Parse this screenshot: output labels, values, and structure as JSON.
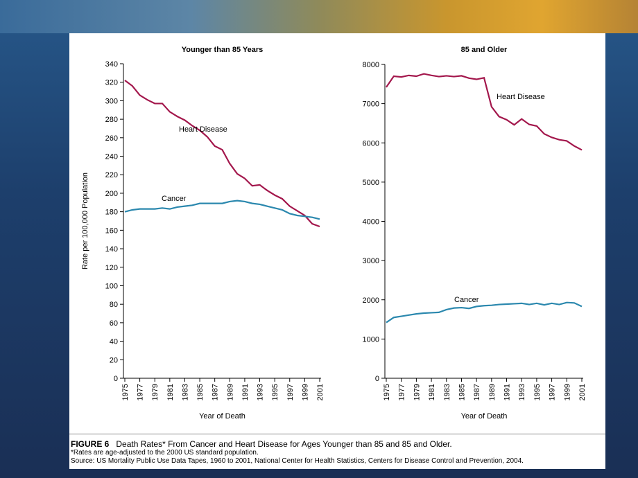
{
  "chart_data": [
    {
      "type": "line",
      "title": "Younger than 85 Years",
      "y_label": "Rate per 100,000 Population",
      "x_label": "Year of Death",
      "x": [
        1975,
        1976,
        1977,
        1978,
        1979,
        1980,
        1981,
        1982,
        1983,
        1984,
        1985,
        1986,
        1987,
        1988,
        1989,
        1990,
        1991,
        1992,
        1993,
        1994,
        1995,
        1996,
        1997,
        1998,
        1999,
        2000,
        2001
      ],
      "series": [
        {
          "name": "Heart Disease",
          "color": "#a3174c",
          "values": [
            322,
            316,
            306,
            301,
            297,
            297,
            288,
            283,
            279,
            273,
            268,
            261,
            251,
            247,
            232,
            221,
            216,
            208,
            209,
            203,
            198,
            194,
            186,
            181,
            176,
            167,
            164
          ]
        },
        {
          "name": "Cancer",
          "color": "#2b88ae",
          "values": [
            180,
            182,
            183,
            183,
            183,
            184,
            183,
            185,
            186,
            187,
            189,
            189,
            189,
            189,
            191,
            192,
            191,
            189,
            188,
            186,
            184,
            182,
            178,
            176,
            175,
            174,
            172
          ]
        }
      ],
      "xlim": [
        1975,
        2001
      ],
      "xticks": [
        1975,
        1977,
        1979,
        1981,
        1983,
        1985,
        1987,
        1989,
        1991,
        1993,
        1995,
        1997,
        1999,
        2001
      ],
      "ylim": [
        0,
        340
      ],
      "yticks": [
        0,
        20,
        40,
        60,
        80,
        100,
        120,
        140,
        160,
        180,
        200,
        220,
        240,
        260,
        280,
        300,
        320,
        340
      ]
    },
    {
      "type": "line",
      "title": "85 and Older",
      "x_label": "Year of Death",
      "x": [
        1975,
        1976,
        1977,
        1978,
        1979,
        1980,
        1981,
        1982,
        1983,
        1984,
        1985,
        1986,
        1987,
        1988,
        1989,
        1990,
        1991,
        1992,
        1993,
        1994,
        1995,
        1996,
        1997,
        1998,
        1999,
        2000,
        2001
      ],
      "series": [
        {
          "name": "Heart Disease",
          "color": "#a3174c",
          "values": [
            7420,
            7700,
            7680,
            7720,
            7700,
            7760,
            7720,
            7690,
            7710,
            7690,
            7710,
            7650,
            7620,
            7660,
            6920,
            6670,
            6590,
            6460,
            6610,
            6470,
            6430,
            6230,
            6140,
            6080,
            6050,
            5920,
            5820
          ]
        },
        {
          "name": "Cancer",
          "color": "#2b88ae",
          "values": [
            1420,
            1550,
            1580,
            1610,
            1640,
            1660,
            1670,
            1680,
            1750,
            1790,
            1800,
            1780,
            1830,
            1850,
            1860,
            1880,
            1890,
            1900,
            1910,
            1880,
            1910,
            1870,
            1910,
            1880,
            1930,
            1920,
            1830
          ]
        }
      ],
      "xlim": [
        1975,
        2001
      ],
      "xticks": [
        1975,
        1977,
        1979,
        1981,
        1983,
        1985,
        1987,
        1989,
        1991,
        1993,
        1995,
        1997,
        1999,
        2001
      ],
      "ylim": [
        0,
        8000
      ],
      "yticks": [
        0,
        1000,
        2000,
        3000,
        4000,
        5000,
        6000,
        7000,
        8000
      ]
    }
  ],
  "caption": {
    "figure_label": "FIGURE 6",
    "text": "Death Rates* From Cancer and Heart Disease for Ages Younger than 85 and 85 and Older.",
    "note": "*Rates are age-adjusted to the 2000 US standard population.",
    "source": "Source: US Mortality Public Use Data Tapes, 1960 to 2001, National Center for Health Statistics, Centers for Disease Control and Prevention, 2004."
  }
}
